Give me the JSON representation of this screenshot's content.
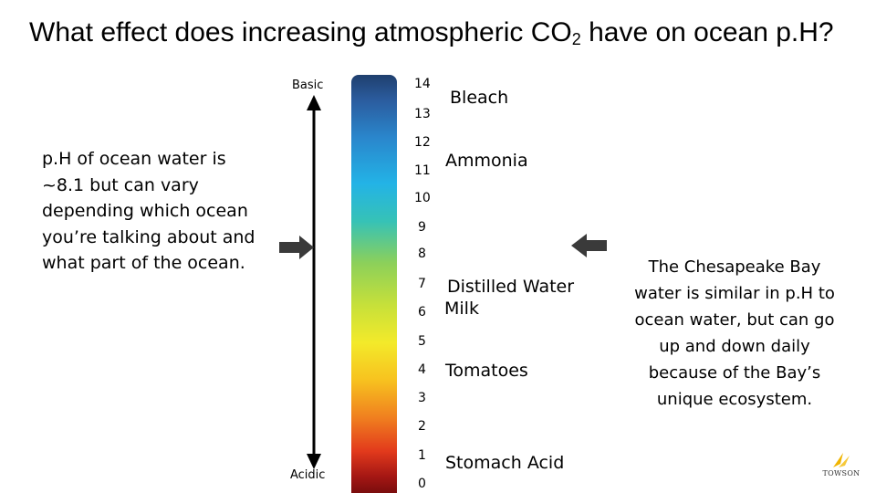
{
  "title": {
    "main": "What effect does increasing atmospheric  CO",
    "subscript": "2",
    "tail": " have on ocean p.H?"
  },
  "scale": {
    "top_label": "Basic",
    "bottom_label": "Acidic",
    "ticks": [
      "14",
      "13",
      "12",
      "11",
      "10",
      "9",
      "8",
      "7",
      "6",
      "5",
      "4",
      "3",
      "2",
      "1",
      "0"
    ]
  },
  "substances": {
    "bleach": "Bleach",
    "ammonia": "Ammonia",
    "distilled_water": "Distilled Water",
    "milk": "Milk",
    "tomatoes": "Tomatoes",
    "stomach_acid": "Stomach Acid"
  },
  "left_note": "p.H of ocean water is ~8.1 but can vary depending which ocean you’re talking about and what part of the ocean.",
  "right_note": "The Chesapeake Bay water is similar in p.H to ocean water, but can go up and down daily because of the Bay’s unique ecosystem.",
  "logo": {
    "text": "TOWSON"
  },
  "colors": {
    "arrow": "#000000",
    "pointer": "#3a3a3a",
    "logo_gold": "#f0b400"
  }
}
